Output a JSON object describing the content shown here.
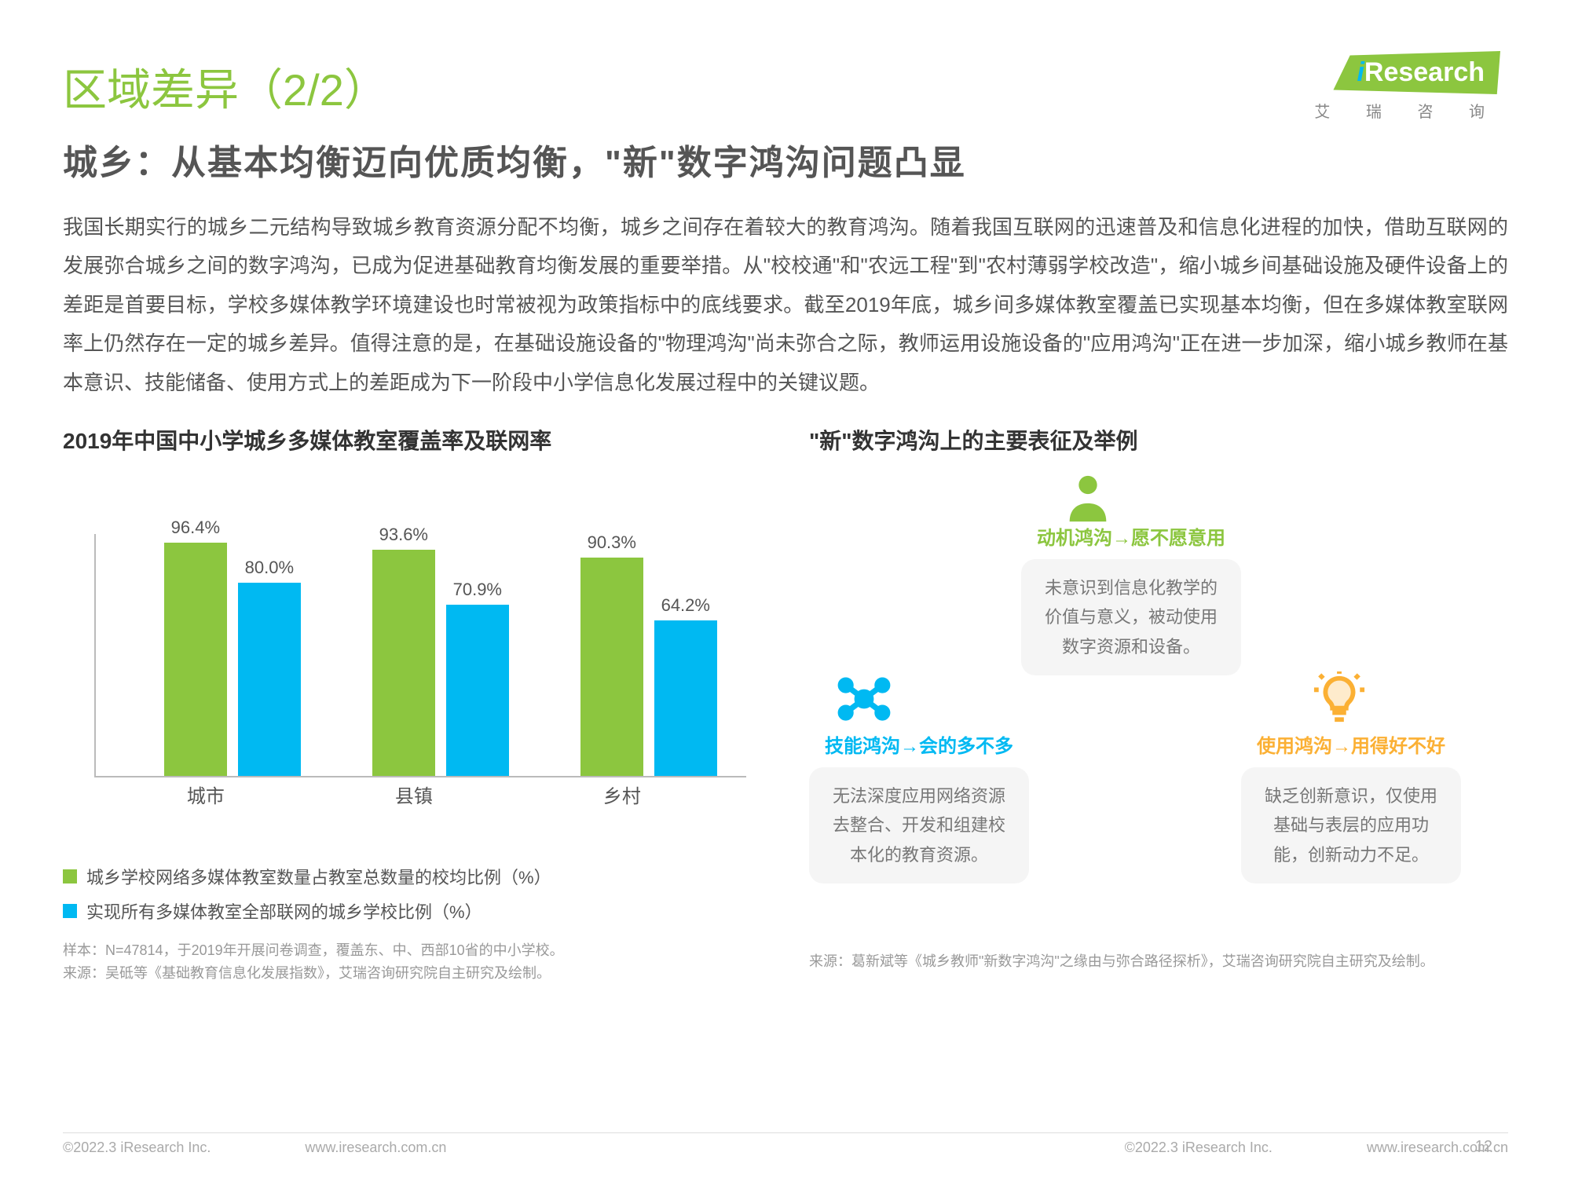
{
  "logo": {
    "text": "Research",
    "subtitle": "艾 瑞 咨 询"
  },
  "title": "区域差异（2/2）",
  "subtitle": "城乡：从基本均衡迈向优质均衡，\"新\"数字鸿沟问题凸显",
  "body": "我国长期实行的城乡二元结构导致城乡教育资源分配不均衡，城乡之间存在着较大的教育鸿沟。随着我国互联网的迅速普及和信息化进程的加快，借助互联网的发展弥合城乡之间的数字鸿沟，已成为促进基础教育均衡发展的重要举措。从\"校校通\"和\"农远工程\"到\"农村薄弱学校改造\"，缩小城乡间基础设施及硬件设备上的差距是首要目标，学校多媒体教学环境建设也时常被视为政策指标中的底线要求。截至2019年底，城乡间多媒体教室覆盖已实现基本均衡，但在多媒体教室联网率上仍然存在一定的城乡差异。值得注意的是，在基础设施设备的\"物理鸿沟\"尚未弥合之际，教师运用设施设备的\"应用鸿沟\"正在进一步加深，缩小城乡教师在基本意识、技能储备、使用方式上的差距成为下一阶段中小学信息化发展过程中的关键议题。",
  "chart": {
    "title": "2019年中国中小学城乡多媒体教室覆盖率及联网率",
    "categories": [
      "城市",
      "县镇",
      "乡村"
    ],
    "series1_values": [
      96.4,
      93.6,
      90.3
    ],
    "series2_values": [
      80.0,
      70.9,
      64.2
    ],
    "series1_labels": [
      "96.4%",
      "93.6%",
      "90.3%"
    ],
    "series2_labels": [
      "80.0%",
      "70.9%",
      "64.2%"
    ],
    "series1_color": "#8cc63f",
    "series2_color": "#00b9f2",
    "ymax": 100,
    "legend1": "城乡学校网络多媒体教室数量占教室总数量的校均比例（%）",
    "legend2": "实现所有多媒体教室全部联网的城乡学校比例（%）",
    "footnote": "样本：N=47814，于2019年开展问卷调查，覆盖东、中、西部10省的中小学校。\n来源：吴砥等《基础教育信息化发展指数》，艾瑞咨询研究院自主研究及绘制。"
  },
  "right": {
    "title": "\"新\"数字鸿沟上的主要表征及举例",
    "boxes": [
      {
        "title": "动机鸿沟→愿不愿意用",
        "color": "#8cc63f",
        "text": "未意识到信息化教学的价值与意义，被动使用数字资源和设备。"
      },
      {
        "title": "技能鸿沟→会的多不多",
        "color": "#00b9f2",
        "text": "无法深度应用网络资源去整合、开发和组建校本化的教育资源。"
      },
      {
        "title": "使用鸿沟→用得好不好",
        "color": "#fbb034",
        "text": "缺乏创新意识，仅使用基础与表层的应用功能，创新动力不足。"
      }
    ],
    "footnote": "来源：葛新斌等《城乡教师\"新数字鸿沟\"之缘由与弥合路径探析》，艾瑞咨询研究院自主研究及绘制。"
  },
  "footer": {
    "copyright": "©2022.3 iResearch Inc.",
    "url": "www.iresearch.com.cn",
    "page": "12"
  }
}
